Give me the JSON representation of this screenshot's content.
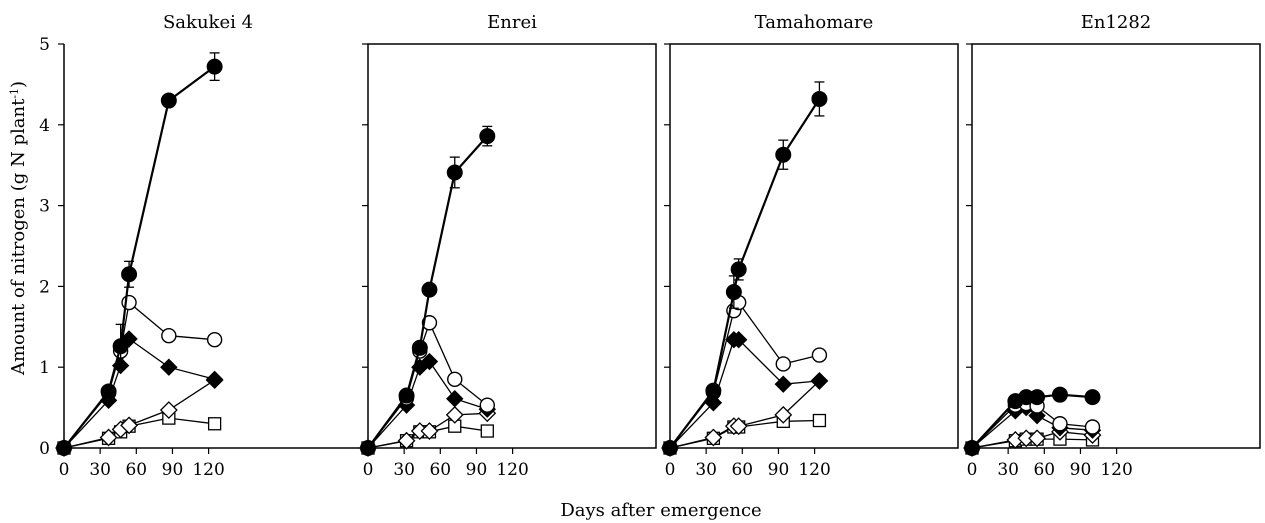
{
  "chart_data": {
    "type": "line",
    "ylabel": "Amount of nitrogen (g N plant",
    "ylabel_superscript": "-1",
    "ylabel_close": ")",
    "xlabel": "Days after emergence",
    "ylim": [
      0,
      5
    ],
    "xlim": [
      0,
      125
    ],
    "yticks": [
      0,
      1,
      2,
      3,
      4,
      5
    ],
    "xticks": [
      0,
      30,
      60,
      90,
      120
    ],
    "grid": false,
    "panels": [
      {
        "title": "Sakukei 4",
        "series": [
          {
            "marker": "filled-circle",
            "x": [
              0,
              37,
              47,
              54,
              87,
              125
            ],
            "y": [
              0,
              0.7,
              1.26,
              2.15,
              4.3,
              4.72
            ],
            "err": [
              0,
              0,
              0.27,
              0.16,
              0,
              0.17
            ]
          },
          {
            "marker": "open-circle",
            "x": [
              0,
              37,
              47,
              54,
              87,
              125
            ],
            "y": [
              0,
              0.68,
              1.2,
              1.8,
              1.39,
              1.34
            ],
            "err": []
          },
          {
            "marker": "filled-diamond",
            "x": [
              0,
              37,
              47,
              54,
              87,
              125
            ],
            "y": [
              0,
              0.59,
              1.02,
              1.35,
              1.0,
              0.85
            ],
            "err": []
          },
          {
            "marker": "open-diamond",
            "x": [
              0,
              37,
              47,
              54,
              87,
              125
            ],
            "y": [
              0,
              0.13,
              0.23,
              0.28,
              0.47,
              0.84
            ],
            "err": []
          },
          {
            "marker": "open-square",
            "x": [
              0,
              37,
              47,
              54,
              87,
              125
            ],
            "y": [
              0,
              0.12,
              0.2,
              0.27,
              0.37,
              0.3
            ],
            "err": []
          }
        ]
      },
      {
        "title": "Enrei",
        "series": [
          {
            "marker": "filled-circle",
            "x": [
              0,
              32,
              43,
              51,
              72,
              99
            ],
            "y": [
              0,
              0.65,
              1.24,
              1.96,
              3.41,
              3.86
            ],
            "err": [
              0,
              0,
              0,
              0,
              0.19,
              0.12
            ]
          },
          {
            "marker": "open-circle",
            "x": [
              0,
              32,
              43,
              51,
              72,
              99
            ],
            "y": [
              0,
              0.62,
              1.2,
              1.55,
              0.85,
              0.53
            ],
            "err": []
          },
          {
            "marker": "filled-diamond",
            "x": [
              0,
              32,
              43,
              51,
              72,
              99
            ],
            "y": [
              0,
              0.53,
              1.0,
              1.07,
              0.61,
              0.48
            ],
            "err": []
          },
          {
            "marker": "open-diamond",
            "x": [
              0,
              32,
              43,
              51,
              72,
              99
            ],
            "y": [
              0,
              0.09,
              0.21,
              0.21,
              0.41,
              0.43
            ],
            "err": []
          },
          {
            "marker": "open-square",
            "x": [
              0,
              32,
              43,
              51,
              72,
              99
            ],
            "y": [
              0,
              0.09,
              0.2,
              0.2,
              0.27,
              0.21
            ],
            "err": []
          }
        ]
      },
      {
        "title": "Tamahomare",
        "series": [
          {
            "marker": "filled-circle",
            "x": [
              0,
              36,
              53,
              57,
              94,
              124
            ],
            "y": [
              0,
              0.71,
              1.93,
              2.21,
              3.63,
              4.32
            ],
            "err": [
              0,
              0,
              0.2,
              0.13,
              0.18,
              0.21
            ]
          },
          {
            "marker": "open-circle",
            "x": [
              0,
              36,
              53,
              57,
              94,
              124
            ],
            "y": [
              0,
              0.69,
              1.7,
              1.8,
              1.04,
              1.15
            ],
            "err": []
          },
          {
            "marker": "filled-diamond",
            "x": [
              0,
              36,
              53,
              57,
              94,
              124
            ],
            "y": [
              0,
              0.56,
              1.34,
              1.34,
              0.79,
              0.83
            ],
            "err": []
          },
          {
            "marker": "open-diamond",
            "x": [
              0,
              36,
              53,
              57,
              94,
              124
            ],
            "y": [
              0,
              0.13,
              0.27,
              0.27,
              0.41,
              0.83
            ],
            "err": []
          },
          {
            "marker": "open-square",
            "x": [
              0,
              36,
              53,
              57,
              94,
              124
            ],
            "y": [
              0,
              0.12,
              0.26,
              0.26,
              0.33,
              0.34
            ],
            "err": []
          }
        ]
      },
      {
        "title": "En1282",
        "series": [
          {
            "marker": "filled-circle",
            "x": [
              0,
              36,
              45,
              54,
              73,
              100
            ],
            "y": [
              0,
              0.58,
              0.63,
              0.63,
              0.66,
              0.63
            ],
            "err": []
          },
          {
            "marker": "open-circle",
            "x": [
              0,
              36,
              45,
              54,
              73,
              100
            ],
            "y": [
              0,
              0.53,
              0.55,
              0.52,
              0.3,
              0.26
            ],
            "err": []
          },
          {
            "marker": "filled-diamond",
            "x": [
              0,
              36,
              45,
              54,
              73,
              100
            ],
            "y": [
              0,
              0.46,
              0.5,
              0.4,
              0.25,
              0.22
            ],
            "err": []
          },
          {
            "marker": "open-diamond",
            "x": [
              0,
              36,
              45,
              54,
              73,
              100
            ],
            "y": [
              0,
              0.1,
              0.12,
              0.12,
              0.2,
              0.16
            ],
            "err": []
          },
          {
            "marker": "open-square",
            "x": [
              0,
              36,
              45,
              54,
              73,
              100
            ],
            "y": [
              0,
              0.09,
              0.11,
              0.11,
              0.11,
              0.1
            ],
            "err": []
          }
        ]
      }
    ]
  }
}
